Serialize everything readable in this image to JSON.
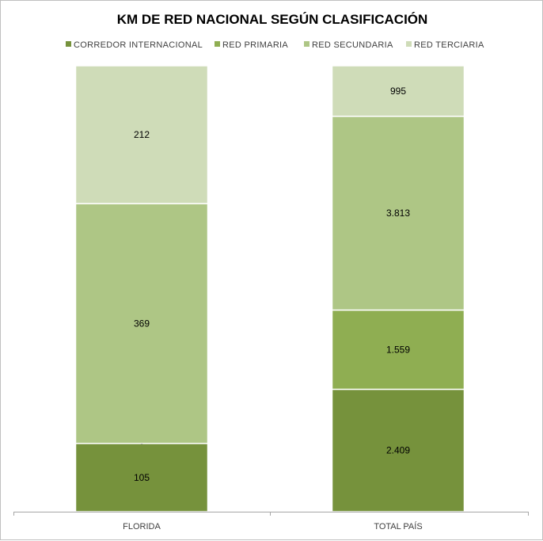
{
  "chart_data": {
    "type": "bar",
    "stacked": "percent",
    "title": "KM DE RED NACIONAL SEGÚN CLASIFICACIÓN",
    "xlabel": "",
    "ylabel": "",
    "legend_position": "top",
    "grid": false,
    "categories": [
      "FLORIDA",
      "TOTAL PAÍS"
    ],
    "series": [
      {
        "name": "CORREDOR INTERNACIONAL",
        "color": "#76923c",
        "values": [
          105,
          2409
        ],
        "labels": [
          "105",
          "2.409"
        ]
      },
      {
        "name": "RED PRIMARIA",
        "color": "#8fae52",
        "values": [
          0,
          1559
        ],
        "labels": [
          "0",
          "1.559"
        ]
      },
      {
        "name": "RED SECUNDARIA",
        "color": "#aec685",
        "values": [
          369,
          3813
        ],
        "labels": [
          "369",
          "3.813"
        ]
      },
      {
        "name": "RED TERCIARIA",
        "color": "#cfdcb8",
        "values": [
          212,
          995
        ],
        "labels": [
          "212",
          "995"
        ]
      }
    ]
  }
}
